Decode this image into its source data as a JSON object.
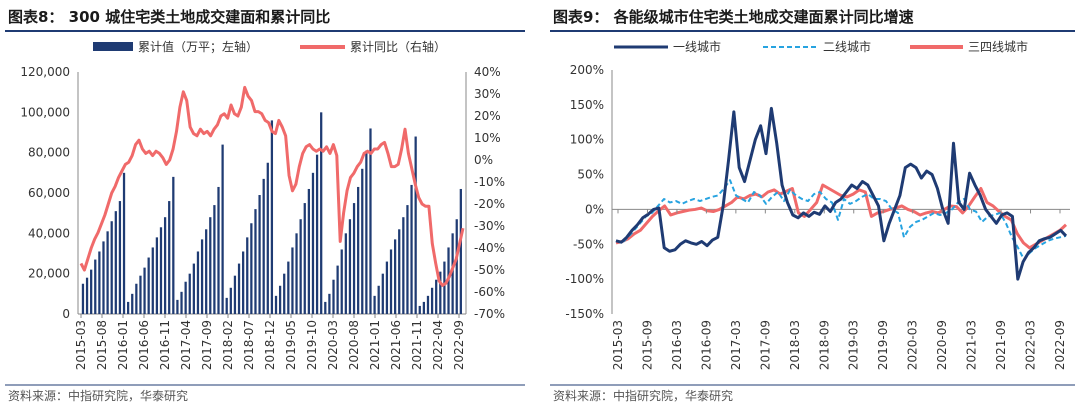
{
  "charts": [
    {
      "title": "图表8：  300 城住宅类土地成交建面和累计同比",
      "source": "资料来源：中指研究院，华泰研究"
    },
    {
      "title": "图表9：  各能级城市住宅类土地成交建面累计同比增速",
      "source": "资料来源：中指研究院，华泰研究"
    }
  ],
  "chart_data": [
    {
      "type": "bar+line",
      "title": "300 城住宅类土地成交建面和累计同比",
      "x_labels": [
        "2015-03",
        "2015-08",
        "2016-01",
        "2016-06",
        "2016-11",
        "2017-04",
        "2017-09",
        "2018-02",
        "2018-07",
        "2018-12",
        "2019-05",
        "2019-10",
        "2020-03",
        "2020-08",
        "2021-01",
        "2021-06",
        "2021-11",
        "2022-04",
        "2022-09"
      ],
      "y_left": {
        "ticks": [
          "0",
          "20,000",
          "40,000",
          "60,000",
          "80,000",
          "100,000",
          "120,000"
        ],
        "range": [
          0,
          120000
        ]
      },
      "y_right": {
        "ticks": [
          "-70%",
          "-60%",
          "-50%",
          "-40%",
          "-30%",
          "-20%",
          "-10%",
          "0%",
          "10%",
          "20%",
          "30%",
          "40%"
        ],
        "range": [
          -70,
          40
        ]
      },
      "bar_series": {
        "name": "累计值（万平；左轴）",
        "color": "#1f3b73",
        "values": [
          15000,
          18000,
          22000,
          27000,
          31000,
          36000,
          41000,
          46000,
          51000,
          56000,
          70000,
          6000,
          10000,
          15000,
          19000,
          23000,
          28000,
          33000,
          38000,
          43000,
          48000,
          56000,
          68000,
          7000,
          11000,
          16000,
          20000,
          25000,
          31000,
          37000,
          42000,
          48000,
          54000,
          63000,
          84000,
          8000,
          13000,
          19000,
          25000,
          31000,
          38000,
          45000,
          52000,
          59000,
          67000,
          75000,
          96000,
          9000,
          14000,
          20000,
          26000,
          33000,
          40000,
          47000,
          55000,
          62000,
          70000,
          79000,
          100000,
          6000,
          10000,
          17000,
          24000,
          32000,
          40000,
          47000,
          55000,
          63000,
          72000,
          81000,
          92000,
          9000,
          14000,
          20000,
          26000,
          32000,
          37000,
          42000,
          48000,
          54000,
          64000,
          88000,
          4000,
          6000,
          9000,
          13000,
          17000,
          21000,
          26000,
          33000,
          40000,
          47000,
          62000
        ]
      },
      "line_series": {
        "name": "累计同比（右轴）",
        "color": "#f06a6a",
        "values": [
          -47,
          -50,
          -45,
          -40,
          -36,
          -33,
          -29,
          -25,
          -20,
          -15,
          -12,
          -8,
          -5,
          -2,
          -1,
          2,
          7,
          9,
          5,
          3,
          4,
          2,
          4,
          3,
          1,
          -2,
          0,
          5,
          13,
          24,
          31,
          27,
          15,
          12,
          11,
          14,
          12,
          13,
          11,
          14,
          16,
          20,
          21,
          19,
          25,
          21,
          20,
          24,
          33,
          29,
          27,
          22,
          22,
          21,
          18,
          17,
          13,
          12,
          18,
          15,
          11,
          -7,
          -14,
          -11,
          -3,
          3,
          6,
          7,
          5,
          4,
          5,
          4,
          6,
          3,
          7,
          2,
          -37,
          -24,
          -14,
          -8,
          -6,
          -3,
          -1,
          3,
          4,
          3,
          5,
          5,
          7,
          8,
          3,
          -3,
          -3,
          -2,
          5,
          14,
          3,
          -4,
          -11,
          -17,
          -20,
          -21,
          -21,
          -38,
          -47,
          -55,
          -57,
          -56,
          -53,
          -49,
          -45,
          -38,
          -31
        ]
      },
      "legend": "top"
    },
    {
      "type": "line",
      "title": "各能级城市住宅类土地成交建面累计同比增速",
      "x_labels": [
        "2015-03",
        "2015-09",
        "2016-03",
        "2016-09",
        "2017-03",
        "2017-09",
        "2018-03",
        "2018-09",
        "2019-03",
        "2019-09",
        "2020-03",
        "2020-09",
        "2021-03",
        "2021-09",
        "2022-03",
        "2022-09"
      ],
      "y": {
        "ticks": [
          "-150%",
          "-100%",
          "-50%",
          "0%",
          "50%",
          "100%",
          "150%",
          "200%"
        ],
        "range": [
          -150,
          200
        ]
      },
      "series": [
        {
          "name": "一线城市",
          "color": "#1f3b73",
          "dash": false,
          "values": [
            -45,
            -47,
            -40,
            -30,
            -22,
            -12,
            -7,
            0,
            2,
            -55,
            -60,
            -58,
            -50,
            -45,
            -48,
            -50,
            -46,
            -52,
            -44,
            -40,
            5,
            70,
            140,
            60,
            40,
            70,
            100,
            120,
            80,
            145,
            95,
            35,
            10,
            -8,
            -12,
            -5,
            -10,
            -4,
            -7,
            5,
            -3,
            10,
            15,
            25,
            35,
            30,
            40,
            35,
            20,
            5,
            -45,
            -20,
            0,
            20,
            60,
            65,
            60,
            45,
            55,
            50,
            30,
            0,
            -20,
            95,
            10,
            0,
            52,
            35,
            20,
            0,
            -10,
            -20,
            -8,
            -5,
            -10,
            -100,
            -75,
            -62,
            -55,
            -45,
            -42,
            -40,
            -35,
            -30,
            -38
          ]
        },
        {
          "name": "二线城市",
          "color": "#27a3e0",
          "dash": true,
          "values": [
            -45,
            -48,
            -40,
            -30,
            -20,
            -10,
            -5,
            5,
            15,
            10,
            12,
            8,
            12,
            15,
            12,
            15,
            18,
            20,
            30,
            42,
            20,
            15,
            10,
            25,
            20,
            8,
            18,
            25,
            12,
            28,
            20,
            15,
            12,
            22,
            25,
            15,
            10,
            -15,
            15,
            8,
            12,
            18,
            22,
            15,
            15,
            12,
            0,
            -5,
            -40,
            -25,
            -18,
            -15,
            -10,
            -5,
            -8,
            -5,
            0,
            10,
            15,
            0,
            -3,
            -18,
            -10,
            -8,
            -5,
            -20,
            -40,
            -55,
            -72,
            -62,
            -55,
            -50,
            -45,
            -42,
            -40,
            -38
          ]
        },
        {
          "name": "三四线城市",
          "color": "#f06a6a",
          "dash": false,
          "values": [
            -48,
            -46,
            -42,
            -35,
            -30,
            -20,
            -10,
            -2,
            5,
            -8,
            -5,
            -3,
            -1,
            0,
            2,
            -2,
            -3,
            0,
            5,
            10,
            18,
            15,
            20,
            22,
            18,
            25,
            28,
            22,
            26,
            30,
            -5,
            -10,
            0,
            10,
            35,
            30,
            25,
            20,
            18,
            22,
            28,
            25,
            -10,
            -5,
            -3,
            0,
            2,
            5,
            0,
            -3,
            -8,
            -5,
            -3,
            -5,
            0,
            5,
            4,
            -5,
            5,
            18,
            30,
            10,
            5,
            -3,
            -10,
            -15,
            -35,
            -48,
            -55,
            -50,
            -45,
            -40,
            -35,
            -30,
            -22
          ]
        }
      ],
      "legend": "top"
    }
  ]
}
